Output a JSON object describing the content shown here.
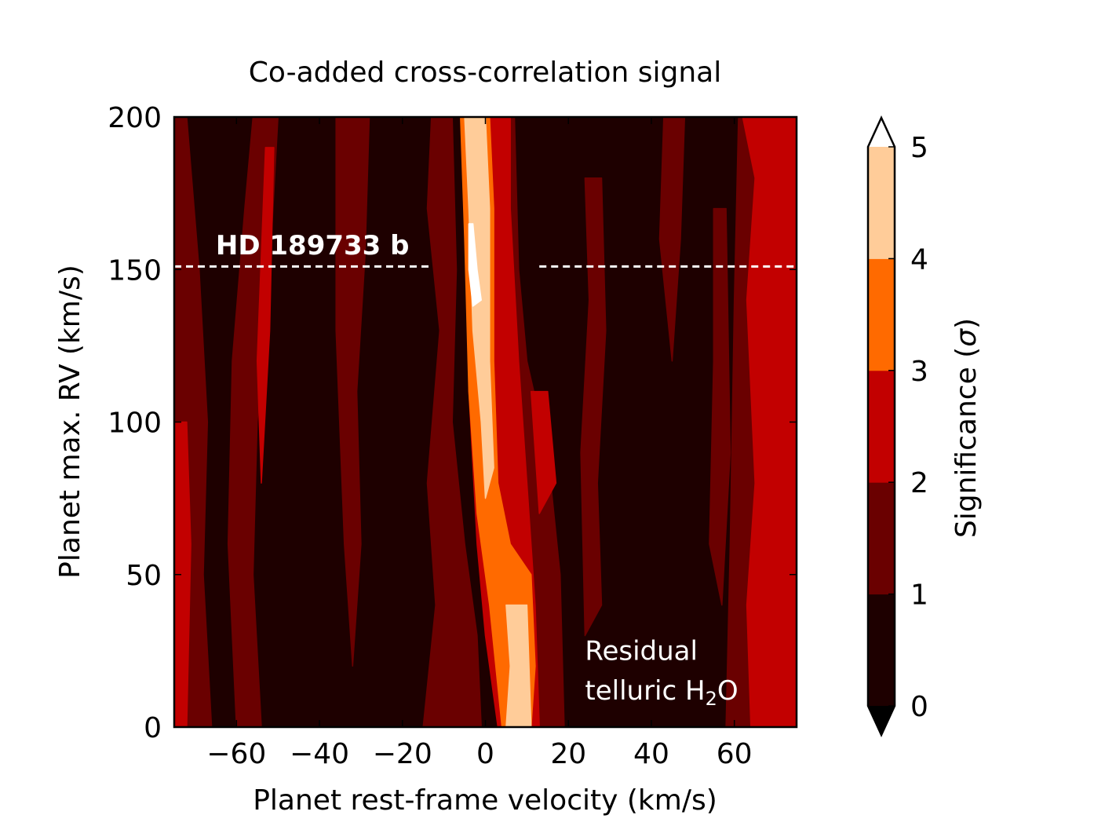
{
  "chart_data": {
    "type": "heatmap",
    "subtype": "filled-contour",
    "title": "Co-added cross-correlation signal",
    "xlabel": "Planet rest-frame velocity (km/s)",
    "ylabel": "Planet max. RV (km/s)",
    "xlim": [
      -75,
      75
    ],
    "ylim": [
      0,
      200
    ],
    "xticks": [
      -60,
      -40,
      -20,
      0,
      20,
      40,
      60
    ],
    "xtick_labels": [
      "−60",
      "−40",
      "−20",
      "0",
      "20",
      "40",
      "60"
    ],
    "yticks": [
      0,
      50,
      100,
      150,
      200
    ],
    "ytick_labels": [
      "0",
      "50",
      "100",
      "150",
      "200"
    ],
    "grid": false,
    "colorbar": {
      "label": "Significance (σ)",
      "label_main": "Significance (",
      "label_sigma": "σ",
      "label_close": ")",
      "levels": [
        0,
        1,
        2,
        3,
        4,
        5
      ],
      "tick_labels": [
        "0",
        "1",
        "2",
        "3",
        "4",
        "5"
      ],
      "colors": [
        "#1e0000",
        "#6a0000",
        "#c20000",
        "#ff6a00",
        "#ffcc99"
      ],
      "over_color": "#ffffff",
      "under_color": "#000000",
      "extend": "both"
    },
    "contour_bands": [
      {
        "level": 1,
        "polygons": [
          [
            [
              -75,
              200
            ],
            [
              -72,
              200
            ],
            [
              -69,
              150
            ],
            [
              -67,
              100
            ],
            [
              -68,
              50
            ],
            [
              -66,
              0
            ],
            [
              -75,
              0
            ]
          ],
          [
            [
              -56,
              200
            ],
            [
              -50,
              200
            ],
            [
              -52,
              150
            ],
            [
              -55,
              100
            ],
            [
              -56,
              50
            ],
            [
              -54,
              0
            ],
            [
              -60,
              0
            ],
            [
              -62,
              60
            ],
            [
              -61,
              120
            ],
            [
              -58,
              170
            ]
          ],
          [
            [
              -36,
              200
            ],
            [
              -28,
              200
            ],
            [
              -29,
              155
            ],
            [
              -31,
              110
            ],
            [
              -30,
              60
            ],
            [
              -32,
              20
            ],
            [
              -34,
              60
            ],
            [
              -36,
              130
            ]
          ],
          [
            [
              -13,
              200
            ],
            [
              -8,
              200
            ],
            [
              -7,
              150
            ],
            [
              -8,
              100
            ],
            [
              -5,
              60
            ],
            [
              -2,
              30
            ],
            [
              -1,
              0
            ],
            [
              -15,
              0
            ],
            [
              -12,
              40
            ],
            [
              -14,
              80
            ],
            [
              -11,
              130
            ],
            [
              -14,
              170
            ]
          ],
          [
            [
              4,
              200
            ],
            [
              7,
              200
            ],
            [
              8,
              150
            ],
            [
              10,
              120
            ],
            [
              15,
              90
            ],
            [
              18,
              50
            ],
            [
              19,
              0
            ],
            [
              12,
              0
            ],
            [
              9,
              60
            ],
            [
              6,
              110
            ],
            [
              5,
              150
            ]
          ],
          [
            [
              24,
              180
            ],
            [
              28,
              180
            ],
            [
              29,
              130
            ],
            [
              27,
              80
            ],
            [
              28,
              40
            ],
            [
              24,
              30
            ],
            [
              23,
              90
            ],
            [
              25,
              140
            ]
          ],
          [
            [
              43,
              200
            ],
            [
              48,
              200
            ],
            [
              47,
              160
            ],
            [
              45,
              120
            ],
            [
              42,
              160
            ]
          ],
          [
            [
              55,
              170
            ],
            [
              58,
              170
            ],
            [
              59,
              90
            ],
            [
              57,
              40
            ],
            [
              54,
              60
            ],
            [
              55,
              120
            ]
          ],
          [
            [
              61,
              200
            ],
            [
              75,
              200
            ],
            [
              75,
              0
            ],
            [
              58,
              0
            ],
            [
              59,
              60
            ],
            [
              60,
              140
            ]
          ]
        ]
      },
      {
        "level": 2,
        "polygons": [
          [
            [
              -75,
              100
            ],
            [
              -72,
              100
            ],
            [
              -71,
              60
            ],
            [
              -72,
              0
            ],
            [
              -75,
              0
            ]
          ],
          [
            [
              -53,
              190
            ],
            [
              -51,
              190
            ],
            [
              -52,
              130
            ],
            [
              -54,
              80
            ],
            [
              -55,
              120
            ]
          ],
          [
            [
              -9,
              200
            ],
            [
              -5,
              200
            ],
            [
              -4,
              160
            ],
            [
              -4,
              110
            ],
            [
              -2,
              60
            ],
            [
              0,
              30
            ],
            [
              3,
              0
            ],
            [
              13,
              0
            ],
            [
              12,
              40
            ],
            [
              10,
              80
            ],
            [
              8,
              120
            ],
            [
              6,
              170
            ],
            [
              6,
              200
            ]
          ],
          [
            [
              11,
              110
            ],
            [
              15,
              110
            ],
            [
              17,
              80
            ],
            [
              13,
              70
            ]
          ],
          [
            [
              62,
              200
            ],
            [
              75,
              200
            ],
            [
              75,
              0
            ],
            [
              64,
              0
            ],
            [
              63,
              40
            ],
            [
              65,
              80
            ],
            [
              63,
              140
            ],
            [
              65,
              180
            ]
          ],
          [
            [
              68,
              60
            ],
            [
              74,
              60
            ],
            [
              74,
              20
            ],
            [
              68,
              20
            ]
          ]
        ]
      },
      {
        "level": 3,
        "polygons": [
          [
            [
              -6,
              200
            ],
            [
              1,
              200
            ],
            [
              2,
              170
            ],
            [
              2,
              120
            ],
            [
              3,
              80
            ],
            [
              6,
              60
            ],
            [
              11,
              50
            ],
            [
              12,
              20
            ],
            [
              11,
              0
            ],
            [
              4,
              0
            ],
            [
              1,
              40
            ],
            [
              -2,
              70
            ],
            [
              -4,
              110
            ],
            [
              -5,
              160
            ]
          ]
        ]
      },
      {
        "level": 4,
        "polygons": [
          [
            [
              -5,
              200
            ],
            [
              0,
              200
            ],
            [
              1,
              170
            ],
            [
              1,
              120
            ],
            [
              2,
              85
            ],
            [
              0,
              75
            ],
            [
              -1,
              100
            ],
            [
              -3,
              130
            ],
            [
              -4,
              170
            ]
          ],
          [
            [
              5,
              40
            ],
            [
              10,
              40
            ],
            [
              11,
              0
            ],
            [
              5,
              0
            ],
            [
              6,
              20
            ]
          ]
        ]
      },
      {
        "level": 5,
        "polygons": [
          [
            [
              -4,
              165
            ],
            [
              -3,
              165
            ],
            [
              -2,
              150
            ],
            [
              -1,
              140
            ],
            [
              -3,
              138
            ],
            [
              -4,
              150
            ]
          ]
        ]
      }
    ],
    "annotations": [
      {
        "id": "planet",
        "text": "HD 189733 b",
        "x": -65,
        "y": 155,
        "bold": true
      },
      {
        "id": "resid1",
        "text": "Residual",
        "x": 24,
        "y": 22
      },
      {
        "id": "resid2_pre",
        "text": "telluric H",
        "x": 24,
        "y": 9
      },
      {
        "id": "resid2_sub",
        "text": "2",
        "x": 24,
        "y": 9
      },
      {
        "id": "resid2_post",
        "text": "O",
        "x": 24,
        "y": 9
      }
    ],
    "reference_line": {
      "y": 151,
      "segments": [
        [
          -75,
          -13
        ],
        [
          13,
          75
        ]
      ],
      "style": "dashed",
      "color": "#ffffff"
    }
  }
}
